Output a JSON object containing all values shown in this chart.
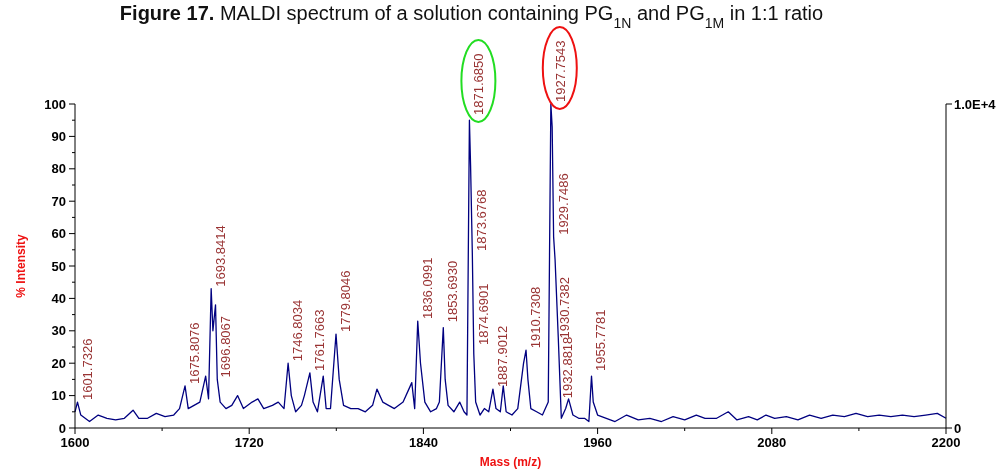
{
  "chart_data": {
    "type": "line",
    "title": "Figure 17. MALDI spectrum of a solution containing PG$_{1N}$ and PG$_{1M}$ in 1:1 ratio",
    "xlabel": "Mass (m/z)",
    "ylabel": "% Intensity",
    "x": [
      1600,
      1601.7,
      1604,
      1610,
      1616,
      1622,
      1628,
      1634,
      1640,
      1644,
      1650,
      1656,
      1662,
      1668,
      1672,
      1675.8,
      1678,
      1682,
      1686,
      1690,
      1692,
      1693.8,
      1695,
      1696.8,
      1698,
      1700,
      1704,
      1708,
      1712,
      1716,
      1722,
      1726,
      1730,
      1736,
      1740,
      1744,
      1746.8,
      1749,
      1752,
      1756,
      1758,
      1761.8,
      1764,
      1767,
      1771,
      1773,
      1776,
      1779.8,
      1782,
      1785,
      1790,
      1795,
      1800,
      1805,
      1808,
      1812,
      1816,
      1820,
      1826,
      1830,
      1832,
      1834,
      1836.1,
      1838,
      1841,
      1845,
      1849,
      1851,
      1853.7,
      1855,
      1857,
      1861,
      1865,
      1868,
      1870,
      1871.7,
      1872.5,
      1873.7,
      1874.7,
      1876,
      1879,
      1882,
      1885,
      1887.9,
      1890,
      1893,
      1895,
      1897,
      1901,
      1905,
      1909,
      1910.7,
      1912,
      1914,
      1918,
      1922,
      1926,
      1927.8,
      1928.7,
      1929.7,
      1930.7,
      1932.9,
      1935,
      1938,
      1940,
      1943,
      1947,
      1951,
      1954,
      1955.8,
      1957,
      1960,
      1966,
      1972,
      1980,
      1988,
      1996,
      2004,
      2012,
      2020,
      2028,
      2034,
      2042,
      2050,
      2056,
      2064,
      2070,
      2076,
      2082,
      2090,
      2098,
      2106,
      2114,
      2122,
      2130,
      2138,
      2146,
      2154,
      2162,
      2170,
      2178,
      2186,
      2194,
      2200
    ],
    "series": [
      {
        "color": "#000080",
        "values": [
          5,
          8,
          4,
          2,
          4,
          3,
          2.5,
          3,
          5.5,
          3,
          3,
          4.5,
          3.5,
          4,
          6,
          13,
          6,
          7,
          8,
          16,
          9,
          43,
          30,
          38,
          15,
          8,
          6,
          7,
          10,
          6,
          8,
          9,
          6,
          7,
          8,
          6,
          20,
          10,
          5,
          7,
          10,
          17,
          8,
          5,
          16,
          6,
          6,
          29,
          15,
          7,
          6,
          6,
          5,
          7,
          12,
          8,
          7,
          6,
          8,
          12,
          14,
          6,
          33,
          20,
          8,
          5,
          6,
          8,
          31,
          15,
          7,
          5,
          8,
          5,
          4,
          95,
          81,
          54,
          23,
          8,
          4,
          6,
          5,
          12,
          6,
          5,
          13,
          5,
          4,
          6,
          20,
          24,
          15,
          6,
          5,
          4,
          8,
          100,
          93,
          59,
          52,
          28,
          3,
          6,
          9,
          4,
          3,
          3,
          2,
          16,
          8,
          4,
          3,
          2,
          4,
          2.5,
          3,
          2,
          3.5,
          2.5,
          4,
          3,
          3,
          5,
          2.5,
          3.5,
          2.5,
          4,
          3,
          3.5,
          2.5,
          4,
          3,
          4,
          3.5,
          4.5,
          3.5,
          4,
          3.5,
          4,
          3.5,
          4,
          4.5,
          3
        ]
      }
    ],
    "xlim": [
      1600,
      2200
    ],
    "xticks": [
      1600,
      {
        "value": 1660,
        "label": null
      },
      1720,
      {
        "value": 1780,
        "label": null
      },
      1840,
      {
        "value": 1900,
        "label": null
      },
      1960,
      {
        "value": 2020,
        "label": null
      },
      2080,
      {
        "value": 2140,
        "label": null
      },
      2200
    ],
    "ylim": [
      0,
      100
    ],
    "yticks": [
      0,
      {
        "value": 5,
        "label": null
      },
      10,
      {
        "value": 15,
        "label": null
      },
      20,
      {
        "value": 25,
        "label": null
      },
      30,
      {
        "value": 35,
        "label": null
      },
      40,
      {
        "value": 45,
        "label": null
      },
      50,
      {
        "value": 55,
        "label": null
      },
      60,
      {
        "value": 65,
        "label": null
      },
      70,
      {
        "value": 75,
        "label": null
      },
      80,
      {
        "value": 85,
        "label": null
      },
      90,
      {
        "value": 95,
        "label": null
      },
      100
    ],
    "y2lim": [
      0,
      10000
    ],
    "y2ticks": [
      {
        "value": 0,
        "label": "0"
      },
      {
        "value": 10000,
        "label": "1.0E+4"
      }
    ],
    "grid": false,
    "marker": "none",
    "line_style": "solid",
    "annotations": [
      {
        "text": "1601.7326",
        "x": 1601.7326,
        "y": 8
      },
      {
        "text": "1675.8076",
        "x": 1675.8076,
        "y": 13
      },
      {
        "text": "1693.8414",
        "x": 1693.8414,
        "y": 43
      },
      {
        "text": "1696.8067",
        "x": 1696.8067,
        "y": 15
      },
      {
        "text": "1746.8034",
        "x": 1746.8034,
        "y": 20
      },
      {
        "text": "1761.7663",
        "x": 1761.7663,
        "y": 17
      },
      {
        "text": "1779.8046",
        "x": 1779.8046,
        "y": 29
      },
      {
        "text": "1836.0991",
        "x": 1836.0991,
        "y": 33
      },
      {
        "text": "1853.6930",
        "x": 1853.693,
        "y": 32
      },
      {
        "text": "1871.6850",
        "x": 1871.685,
        "y": 96
      },
      {
        "text": "1873.6768",
        "x": 1873.6768,
        "y": 54
      },
      {
        "text": "1874.6901",
        "x": 1874.6901,
        "y": 25
      },
      {
        "text": "1887.9012",
        "x": 1887.9012,
        "y": 12
      },
      {
        "text": "1910.7308",
        "x": 1910.7308,
        "y": 24
      },
      {
        "text": "1927.7543",
        "x": 1927.7543,
        "y": 100
      },
      {
        "text": "1929.7486",
        "x": 1929.7486,
        "y": 59
      },
      {
        "text": "1930.7382",
        "x": 1930.7382,
        "y": 27
      },
      {
        "text": "1932.8818",
        "x": 1932.8818,
        "y": 8.6
      },
      {
        "text": "1955.7781",
        "x": 1955.7781,
        "y": 17
      }
    ]
  }
}
